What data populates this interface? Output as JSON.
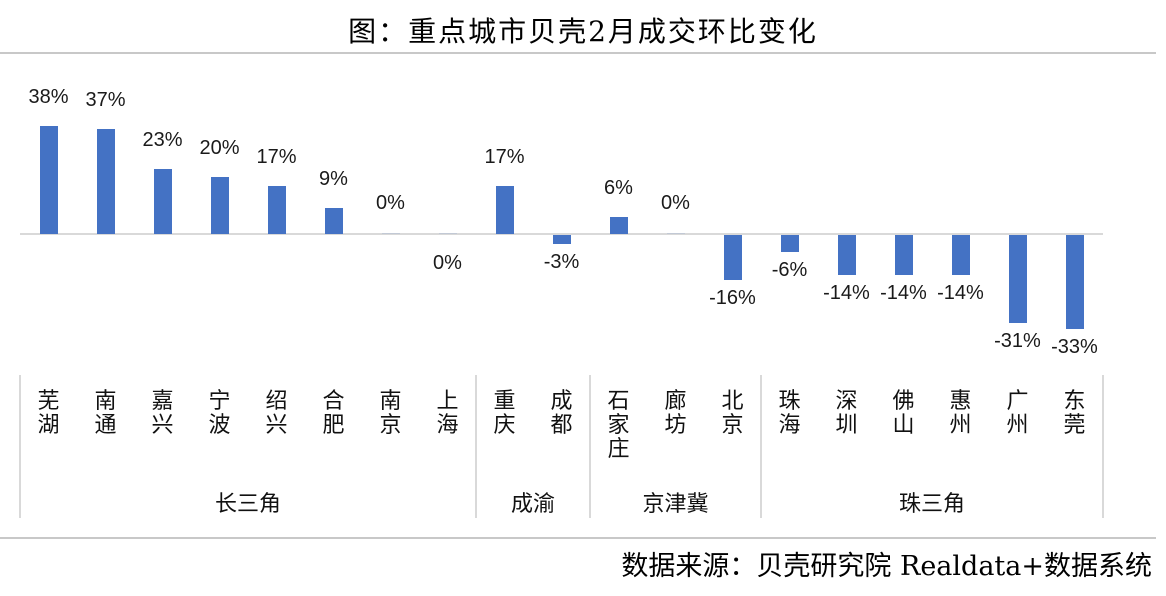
{
  "title": "图：重点城市贝壳2月成交环比变化",
  "source": "数据来源：贝壳研究院 Realdata+数据系统",
  "colors": {
    "bar": "#4472c4",
    "axis": "#d9d9d9",
    "rule": "#c8c8c8"
  },
  "chart_data": {
    "type": "bar",
    "title": "图：重点城市贝壳2月成交环比变化",
    "xlabel": "",
    "ylabel": "",
    "unit": "%",
    "categories": [
      "芜湖",
      "南通",
      "嘉兴",
      "宁波",
      "绍兴",
      "合肥",
      "南京",
      "上海",
      "重庆",
      "成都",
      "石家庄",
      "廊坊",
      "北京",
      "珠海",
      "深圳",
      "佛山",
      "惠州",
      "广州",
      "东莞"
    ],
    "groups": [
      {
        "name": "长三角",
        "cities": [
          "芜湖",
          "南通",
          "嘉兴",
          "宁波",
          "绍兴",
          "合肥",
          "南京",
          "上海"
        ]
      },
      {
        "name": "成渝",
        "cities": [
          "重庆",
          "成都"
        ]
      },
      {
        "name": "京津冀",
        "cities": [
          "石家庄",
          "廊坊",
          "北京"
        ]
      },
      {
        "name": "珠三角",
        "cities": [
          "珠海",
          "深圳",
          "佛山",
          "惠州",
          "广州",
          "东莞"
        ]
      }
    ],
    "series": [
      {
        "name": "2月成交环比",
        "values": [
          38,
          37,
          23,
          20,
          17,
          9,
          0,
          0,
          17,
          -3,
          6,
          0,
          -16,
          -6,
          -14,
          -14,
          -14,
          -31,
          -33
        ]
      }
    ],
    "data_labels": [
      "38%",
      "37%",
      "23%",
      "20%",
      "17%",
      "9%",
      "0%",
      "0%",
      "17%",
      "-3%",
      "6%",
      "0%",
      "-16%",
      "-6%",
      "-14%",
      "-14%",
      "-14%",
      "-31%",
      "-33%"
    ],
    "ylim": [
      -35,
      40
    ],
    "grid": false,
    "legend": "none"
  }
}
